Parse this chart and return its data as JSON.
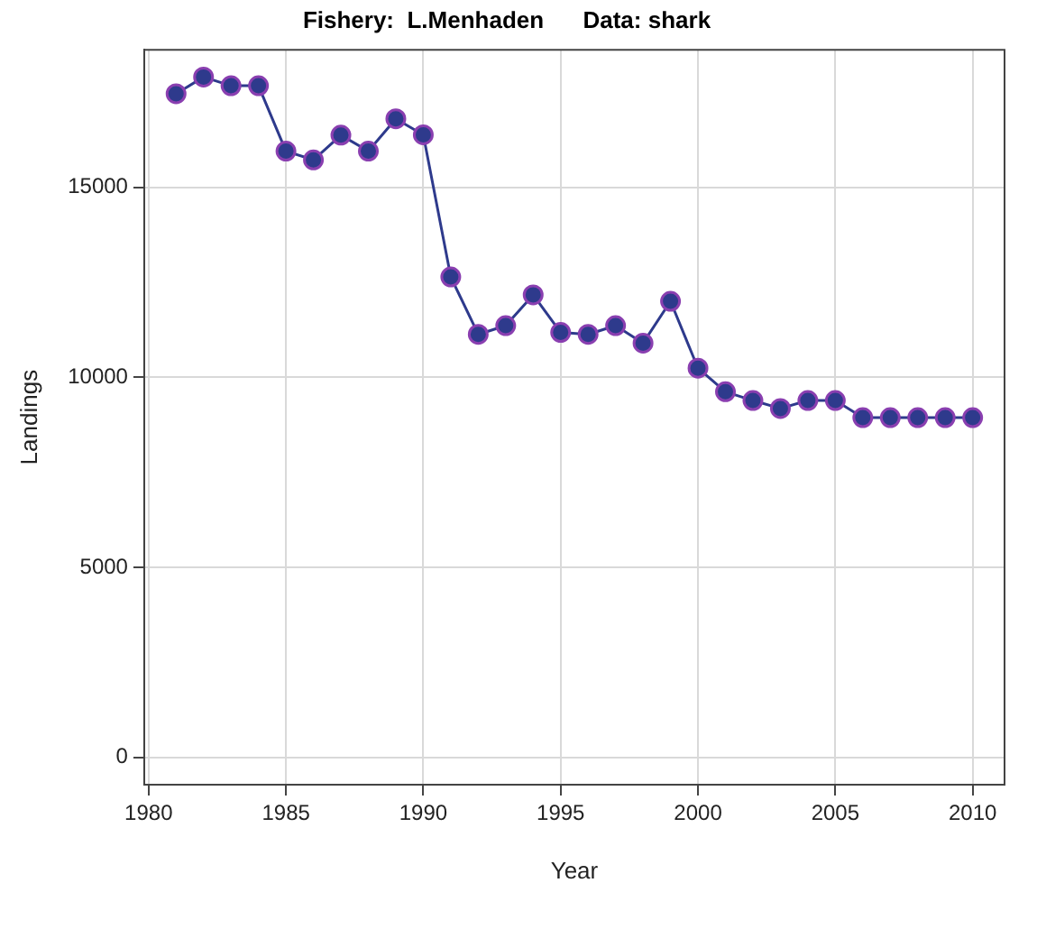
{
  "chart_data": {
    "type": "line",
    "title": "Fishery:  L.Menhaden      Data: shark",
    "xlabel": "Year",
    "ylabel": "Landings",
    "x": [
      1981,
      1982,
      1983,
      1984,
      1985,
      1986,
      1987,
      1988,
      1989,
      1990,
      1991,
      1992,
      1993,
      1994,
      1995,
      1996,
      1997,
      1998,
      1999,
      2000,
      2001,
      2002,
      2003,
      2004,
      2005,
      2006,
      2007,
      2008,
      2009,
      2010
    ],
    "series": [
      {
        "color": "#2e3a8c",
        "values": [
          17460,
          17900,
          17670,
          17670,
          15950,
          15720,
          16370,
          15950,
          16800,
          16380,
          12640,
          11130,
          11360,
          12170,
          11180,
          11130,
          11360,
          10900,
          12000,
          10240,
          9620,
          9390,
          9180,
          9390,
          9390,
          8940,
          8940,
          8940,
          8940,
          8940
        ]
      }
    ],
    "xlim": [
      1979.84,
      2011.16
    ],
    "ylim": [
      -716,
      18616
    ],
    "xticks": [
      1980,
      1985,
      1990,
      1995,
      2000,
      2005,
      2010
    ],
    "yticks": [
      0,
      5000,
      10000,
      15000
    ],
    "grid": true,
    "legend": false,
    "marker": "circle",
    "line_style": "solid"
  }
}
